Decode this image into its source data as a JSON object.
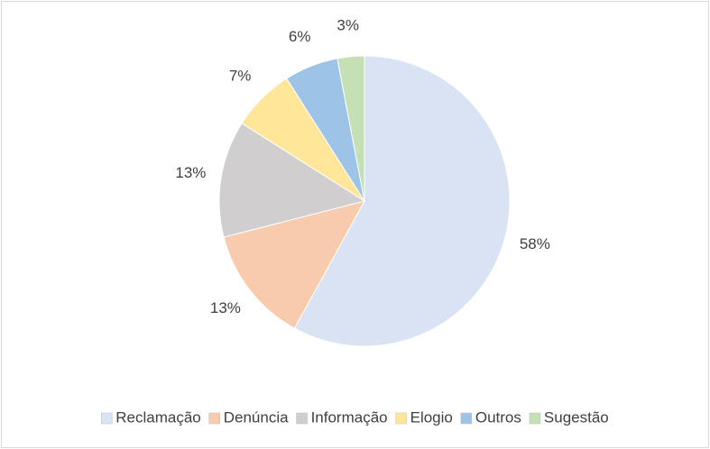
{
  "chart_data": {
    "type": "pie",
    "categories": [
      "Reclamação",
      "Denúncia",
      "Informação",
      "Elogio",
      "Outros",
      "Sugestão"
    ],
    "values": [
      58,
      13,
      13,
      7,
      6,
      3
    ],
    "value_labels": [
      "58%",
      "13%",
      "13%",
      "7%",
      "6%",
      "3%"
    ],
    "colors": [
      "#dae3f3",
      "#f8cbad",
      "#d0cece",
      "#ffe699",
      "#9dc3e6",
      "#c5e0b4"
    ],
    "legend": "bottom"
  }
}
